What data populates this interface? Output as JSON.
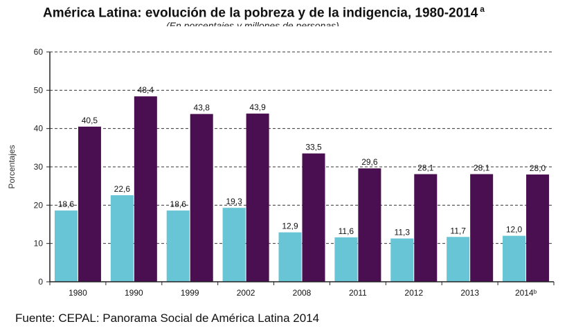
{
  "title": "América Latina: evolución de la pobreza y de la indigencia, 1980-2014",
  "title_note": "a",
  "subtitle": "(En porcentajes y millones de personas)",
  "source": "Fuente: CEPAL: Panorama Social de América Latina 2014",
  "colors": {
    "indigencia": "#67c5d6",
    "pobreza": "#4a0f50",
    "grid": "#333333",
    "axis": "#222222"
  },
  "chart_data": {
    "type": "bar",
    "ylabel": "Porcentajes",
    "ylim": [
      0,
      60
    ],
    "yticks": [
      0,
      10,
      20,
      30,
      40,
      50,
      60
    ],
    "grid": true,
    "categories": [
      "1980",
      "1990",
      "1999",
      "2002",
      "2008",
      "2011",
      "2012",
      "2013",
      "2014ᵇ"
    ],
    "series": [
      {
        "values": [
          18.6,
          22.6,
          18.6,
          19.3,
          12.9,
          11.6,
          11.3,
          11.7,
          12.0
        ],
        "labels": [
          "18,6",
          "22,6",
          "18,6",
          "19,3",
          "12,9",
          "11,6",
          "11,3",
          "11,7",
          "12,0"
        ]
      },
      {
        "values": [
          40.5,
          48.4,
          43.8,
          43.9,
          33.5,
          29.6,
          28.1,
          28.1,
          28.0
        ],
        "labels": [
          "40,5",
          "48,4",
          "43,8",
          "43,9",
          "33,5",
          "29,6",
          "28,1",
          "28,1",
          "28,0"
        ]
      }
    ]
  }
}
